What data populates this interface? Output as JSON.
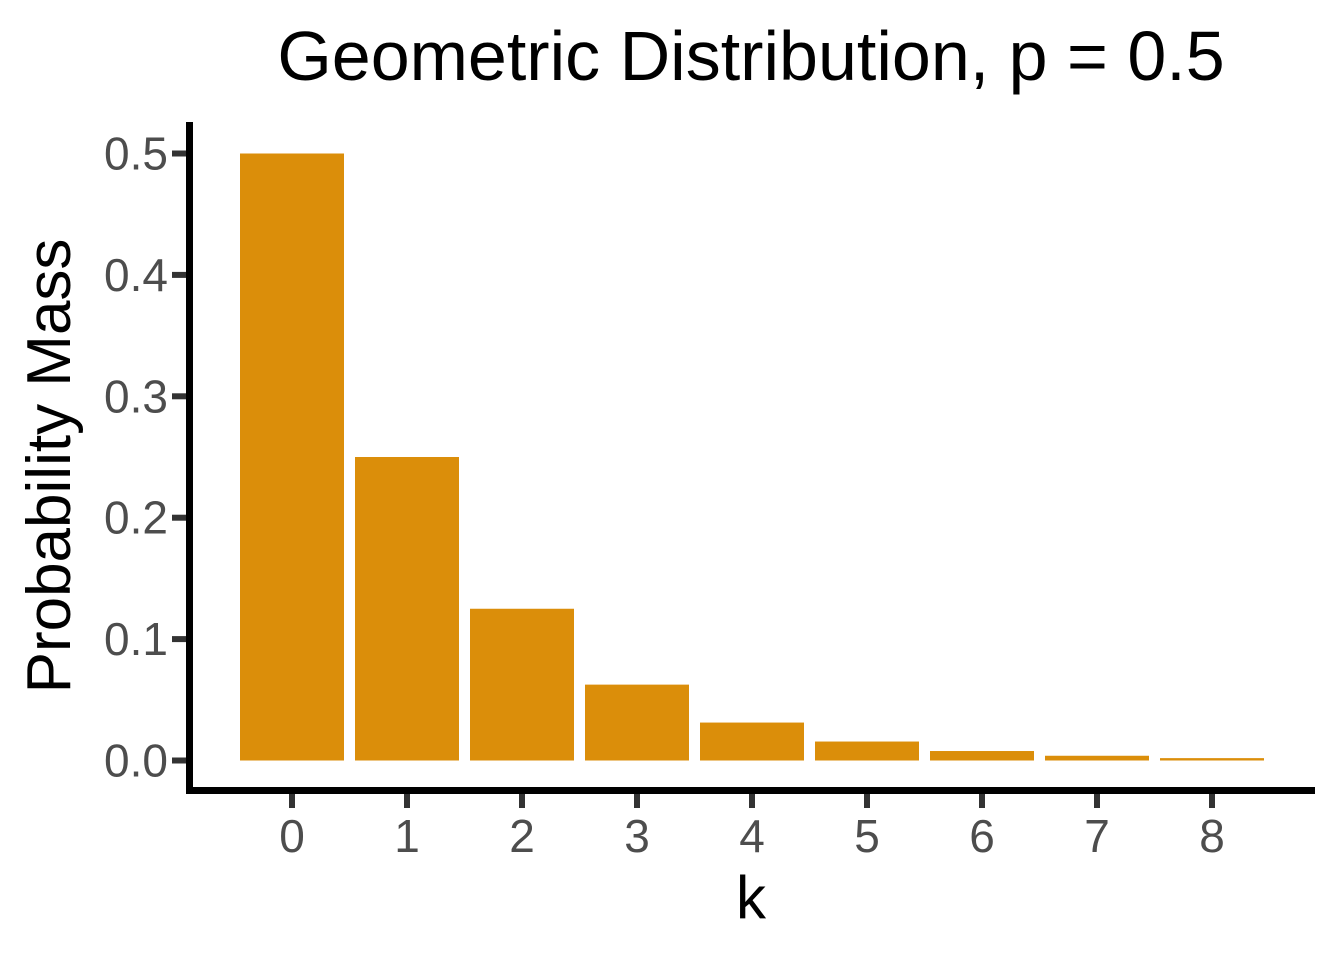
{
  "window": {
    "background": "#FFFFFF"
  },
  "chart_data": {
    "type": "bar",
    "title": "Geometric Distribution, p = 0.5",
    "xlabel": "k",
    "ylabel": "Probability Mass",
    "categories": [
      "0",
      "1",
      "2",
      "3",
      "4",
      "5",
      "6",
      "7",
      "8"
    ],
    "values": [
      0.5,
      0.25,
      0.125,
      0.0625,
      0.03125,
      0.015625,
      0.0078125,
      0.00390625,
      0.001953125
    ],
    "y_tick_labels": [
      "0.0",
      "0.1",
      "0.2",
      "0.3",
      "0.4",
      "0.5"
    ],
    "y_tick_values": [
      0.0,
      0.1,
      0.2,
      0.3,
      0.4,
      0.5
    ],
    "ylim": [
      0,
      0.5
    ],
    "grid": "off",
    "legend": "none",
    "colors": {
      "bar": "#DB8E0A",
      "axis": "#000000",
      "tick": "#333333",
      "tick_label": "#4D4D4D",
      "text": "#000000"
    }
  }
}
